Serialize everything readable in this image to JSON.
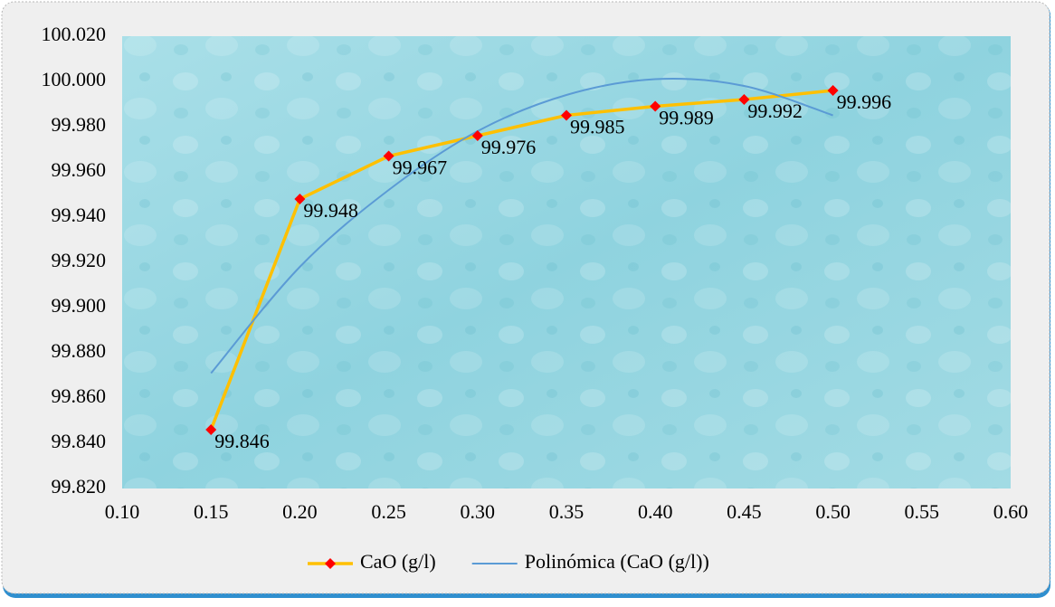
{
  "chart_data": {
    "type": "scatter",
    "x": [
      0.15,
      0.2,
      0.25,
      0.3,
      0.35,
      0.4,
      0.45,
      0.5
    ],
    "series": [
      {
        "name": "CaO (g/l)",
        "color": "#ffc000",
        "marker_color": "#ff0000",
        "values": [
          99.846,
          99.948,
          99.967,
          99.976,
          99.985,
          99.989,
          99.992,
          99.996
        ]
      },
      {
        "name": "Polinómica (CaO (g/l))",
        "color": "#5b9bd5",
        "smooth": true,
        "values": [
          99.871,
          99.918,
          99.952,
          99.978,
          99.994,
          100.001,
          99.998,
          99.985
        ]
      }
    ],
    "xlim": [
      0.1,
      0.6
    ],
    "ylim": [
      99.82,
      100.02
    ],
    "xticks": [
      {
        "value": 0.1,
        "label": "0.10"
      },
      {
        "value": 0.15,
        "label": "0.15"
      },
      {
        "value": 0.2,
        "label": "0.20"
      },
      {
        "value": 0.25,
        "label": "0.25"
      },
      {
        "value": 0.3,
        "label": "0.30"
      },
      {
        "value": 0.35,
        "label": "0.35"
      },
      {
        "value": 0.4,
        "label": "0.40"
      },
      {
        "value": 0.45,
        "label": "0.45"
      },
      {
        "value": 0.5,
        "label": "0.50"
      },
      {
        "value": 0.55,
        "label": "0.55"
      },
      {
        "value": 0.6,
        "label": "0.60"
      }
    ],
    "yticks": [
      {
        "value": 99.82,
        "label": "99.820"
      },
      {
        "value": 99.84,
        "label": "99.840"
      },
      {
        "value": 99.86,
        "label": "99.860"
      },
      {
        "value": 99.88,
        "label": "99.880"
      },
      {
        "value": 99.9,
        "label": "99.900"
      },
      {
        "value": 99.92,
        "label": "99.920"
      },
      {
        "value": 99.94,
        "label": "99.940"
      },
      {
        "value": 99.96,
        "label": "99.960"
      },
      {
        "value": 99.98,
        "label": "99.980"
      },
      {
        "value": 100,
        "label": "100.000"
      },
      {
        "value": 100.02,
        "label": "100.020"
      }
    ],
    "legend": "bottom"
  }
}
